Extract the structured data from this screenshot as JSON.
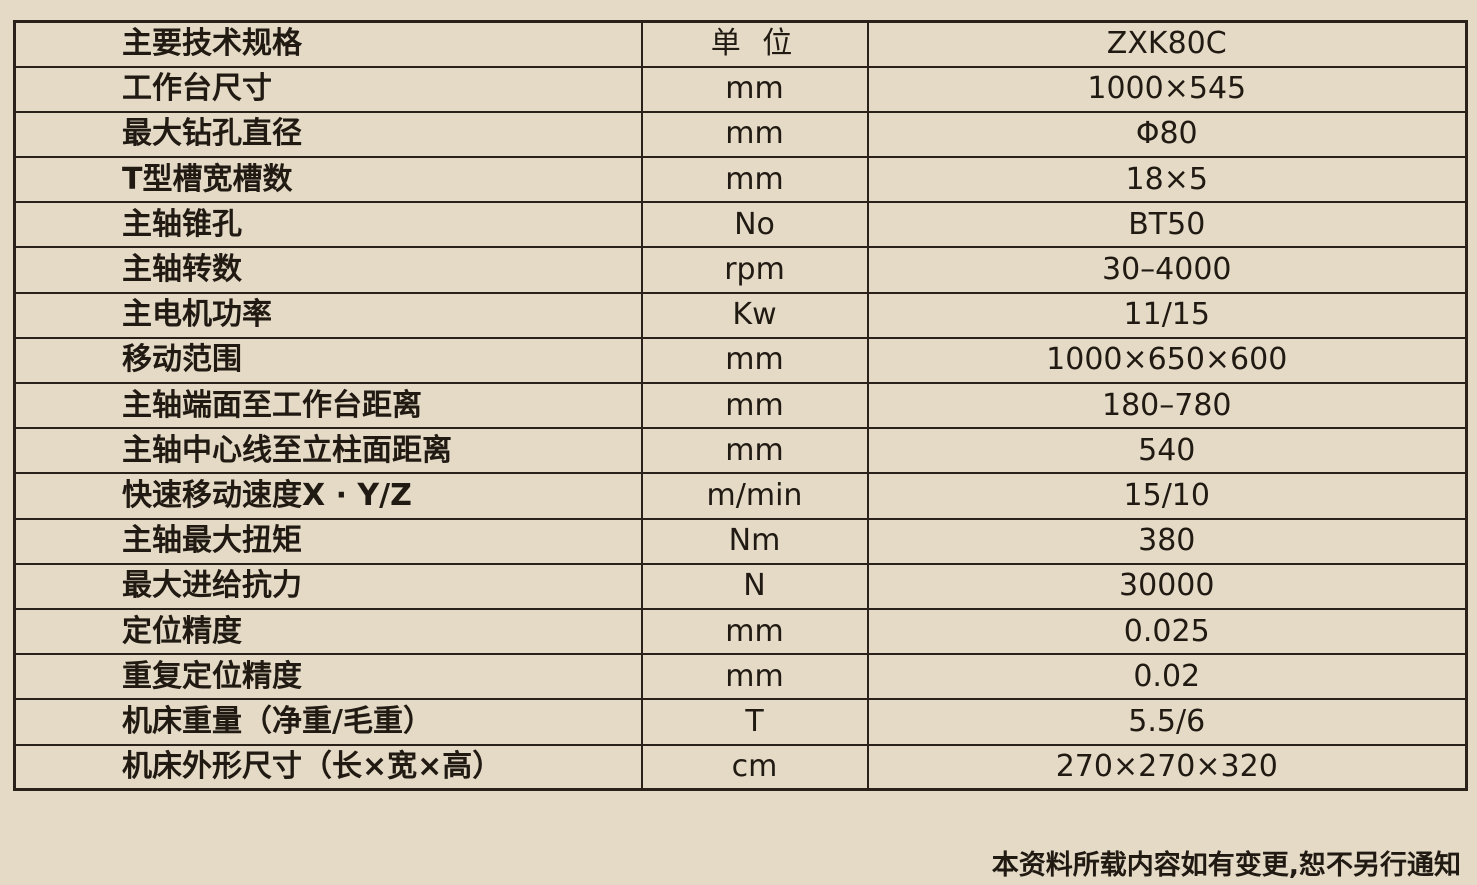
{
  "table": {
    "headers": {
      "spec": "主要技术规格",
      "unit": "单 位",
      "model": "ZXK80C"
    },
    "rows": [
      {
        "spec": "工作台尺寸",
        "unit": "mm",
        "value": "1000×545"
      },
      {
        "spec": "最大钻孔直径",
        "unit": "mm",
        "value": "Φ80"
      },
      {
        "spec": "T型槽宽槽数",
        "unit": "mm",
        "value": "18×5"
      },
      {
        "spec": "主轴锥孔",
        "unit": "No",
        "value": "BT50"
      },
      {
        "spec": "主轴转数",
        "unit": "rpm",
        "value": "30–4000"
      },
      {
        "spec": "主电机功率",
        "unit": "Kw",
        "value": "11/15"
      },
      {
        "spec": "移动范围",
        "unit": "mm",
        "value": "1000×650×600"
      },
      {
        "spec": "主轴端面至工作台距离",
        "unit": "mm",
        "value": "180–780"
      },
      {
        "spec": "主轴中心线至立柱面距离",
        "unit": "mm",
        "value": "540"
      },
      {
        "spec": "快速移动速度X · Y/Z",
        "unit": "m/min",
        "value": "15/10"
      },
      {
        "spec": "主轴最大扭矩",
        "unit": "Nm",
        "value": "380"
      },
      {
        "spec": "最大进给抗力",
        "unit": "N",
        "value": "30000"
      },
      {
        "spec": "定位精度",
        "unit": "mm",
        "value": "0.025"
      },
      {
        "spec": "重复定位精度",
        "unit": "mm",
        "value": "0.02"
      },
      {
        "spec": "机床重量（净重/毛重）",
        "unit": "T",
        "value": "5.5/6"
      },
      {
        "spec": "机床外形尺寸（长×宽×高）",
        "unit": "cm",
        "value": "270×270×320"
      }
    ]
  },
  "footer": {
    "note": "本资料所载内容如有变更,恕不另行通知"
  },
  "colors": {
    "background": "#e5dac6",
    "border": "#29211a",
    "text": "#201a13"
  }
}
